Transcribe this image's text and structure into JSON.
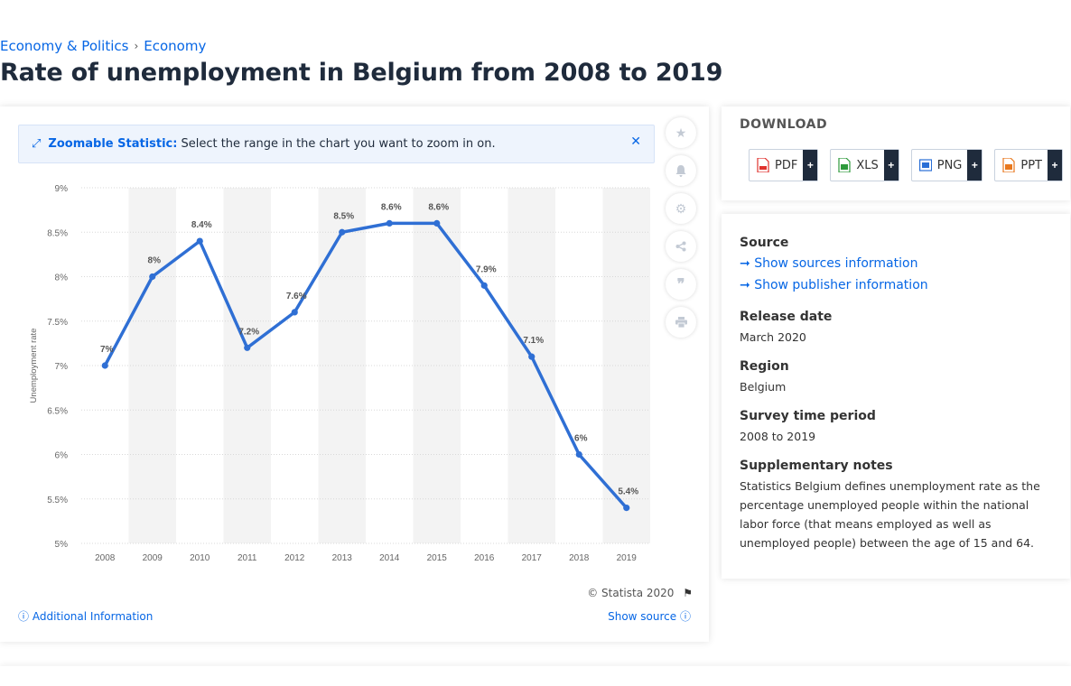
{
  "breadcrumb": {
    "item1": "Economy & Politics",
    "sep": "›",
    "item2": "Economy"
  },
  "title": "Rate of unemployment in Belgium from 2008 to 2019",
  "zoom_banner": {
    "bold": "Zoomable Statistic:",
    "text": "Select the range in the chart you want to zoom in on."
  },
  "credit": "© Statista 2020",
  "additional_info": "Additional Information",
  "show_source": "Show source",
  "download": {
    "title": "DOWNLOAD",
    "buttons": [
      {
        "label": "PDF",
        "color": "#e0322d"
      },
      {
        "label": "XLS",
        "color": "#2e9a3c"
      },
      {
        "label": "PNG",
        "color": "#2a6fd6"
      },
      {
        "label": "PPT",
        "color": "#e8781e"
      }
    ],
    "plus": "+"
  },
  "info": {
    "source_h": "Source",
    "sources_link": "Show sources information",
    "publisher_link": "Show publisher information",
    "release_h": "Release date",
    "release_v": "March 2020",
    "region_h": "Region",
    "region_v": "Belgium",
    "period_h": "Survey time period",
    "period_v": "2008 to 2019",
    "notes_h": "Supplementary notes",
    "notes_v": "Statistics Belgium defines unemployment rate as the percentage unemployed people within the national labor force (that means employed as well as unemployed people) between the age of 15 and 64."
  },
  "colors": {
    "line": "#2f6fd4",
    "accent": "#0666e5",
    "band": "#f3f3f3",
    "grid": "#d8d8d8"
  },
  "chart_data": {
    "type": "line",
    "x": [
      "2008",
      "2009",
      "2010",
      "2011",
      "2012",
      "2013",
      "2014",
      "2015",
      "2016",
      "2017",
      "2018",
      "2019"
    ],
    "values": [
      7,
      8,
      8.4,
      7.2,
      7.6,
      8.5,
      8.6,
      8.6,
      7.9,
      7.1,
      6,
      5.4
    ],
    "labels": [
      "7%",
      "8%",
      "8.4%",
      "7.2%",
      "7.6%",
      "8.5%",
      "8.6%",
      "8.6%",
      "7.9%",
      "7.1%",
      "6%",
      "5.4%"
    ],
    "yticks": [
      "5%",
      "5.5%",
      "6%",
      "6.5%",
      "7%",
      "7.5%",
      "8%",
      "8.5%",
      "9%"
    ],
    "ytick_values": [
      5,
      5.5,
      6,
      6.5,
      7,
      7.5,
      8,
      8.5,
      9
    ],
    "ylabel": "Unemployment rate",
    "xlabel": "",
    "ylim": [
      5,
      9
    ],
    "grid": true,
    "legend": "none"
  }
}
